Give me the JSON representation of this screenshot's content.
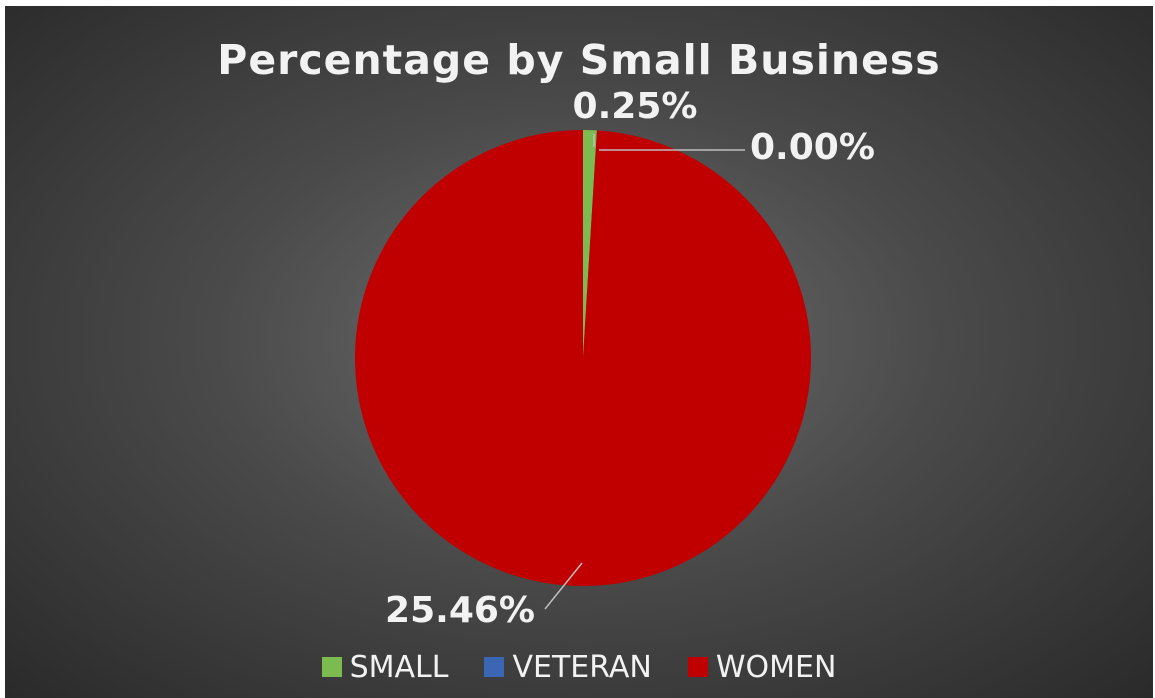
{
  "chart_data": {
    "type": "pie",
    "title": "Percentage by Small Business",
    "slices": [
      {
        "label": "SMALL",
        "value": 0.25,
        "data_label": "0.25%",
        "color": "#7cbb4f"
      },
      {
        "label": "VETERAN",
        "value": 0.0,
        "data_label": "0.00%",
        "color": "#3a66b4"
      },
      {
        "label": "WOMEN",
        "value": 25.46,
        "data_label": "25.46%",
        "color": "#c00000"
      }
    ],
    "legend_position": "bottom",
    "background": "dark-gradient"
  },
  "legend": [
    {
      "label": "SMALL",
      "color": "#7cbb4f"
    },
    {
      "label": "VETERAN",
      "color": "#3a66b4"
    },
    {
      "label": "WOMEN",
      "color": "#c00000"
    }
  ]
}
